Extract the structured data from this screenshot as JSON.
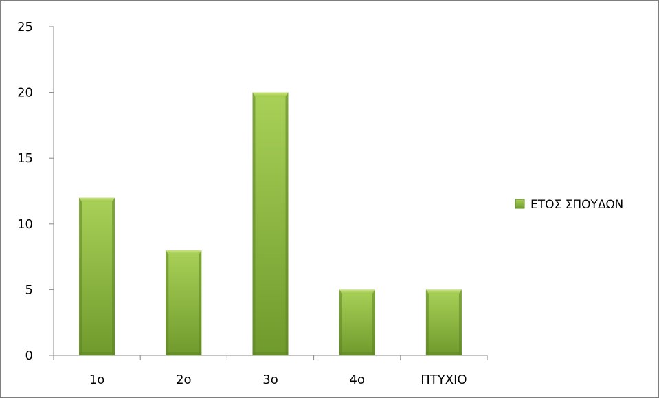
{
  "chart_data": {
    "type": "bar",
    "title": "",
    "xlabel": "",
    "ylabel": "",
    "categories": [
      "1ο",
      "2ο",
      "3ο",
      "4ο",
      "ΠΤΥΧΙΟ"
    ],
    "series": [
      {
        "name": "ΕΤΟΣ ΣΠΟΥΔΩΝ",
        "values": [
          12,
          8,
          20,
          5,
          5
        ],
        "color": "#8ab33a"
      }
    ],
    "ylim": [
      0,
      25
    ],
    "yticks": [
      "0",
      "5",
      "10",
      "15",
      "20",
      "25"
    ],
    "grid": false,
    "legend_position": "right"
  }
}
